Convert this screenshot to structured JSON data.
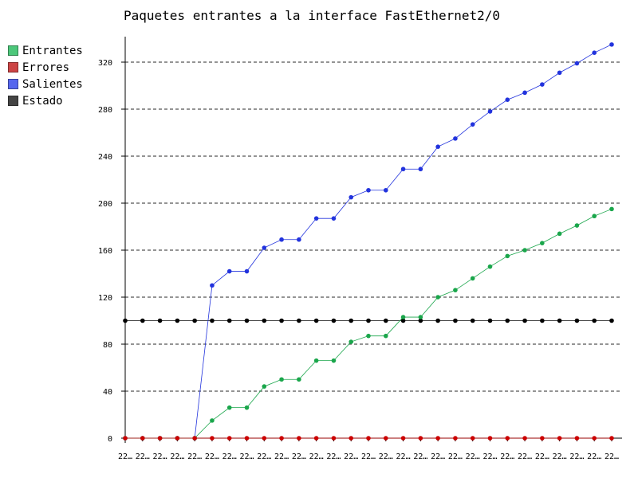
{
  "chart_data": {
    "type": "line",
    "title": "Paquetes entrantes a la interface FastEthernet2/0",
    "xlabel": "",
    "ylabel": "",
    "ylim": [
      0,
      340
    ],
    "yticks": [
      0,
      40,
      80,
      120,
      160,
      200,
      240,
      280,
      320
    ],
    "categories": [
      "22…",
      "22…",
      "22…",
      "22…",
      "22…",
      "22…",
      "22…",
      "22…",
      "22…",
      "22…",
      "22…",
      "22…",
      "22…",
      "22…",
      "22…",
      "22…",
      "22…",
      "22…",
      "22…",
      "22…",
      "22…",
      "22…",
      "22…",
      "22…",
      "22…",
      "22…",
      "22…",
      "22…",
      "22…"
    ],
    "grid": true,
    "grid_style": "dashed horizontal",
    "legend_position": "top-left",
    "series": [
      {
        "name": "Entrantes",
        "color": "#1aa64b",
        "swatch": "#4cc77a",
        "values": [
          0,
          0,
          0,
          0,
          0,
          15,
          26,
          26,
          44,
          50,
          50,
          66,
          66,
          82,
          87,
          87,
          103,
          103,
          120,
          126,
          136,
          146,
          155,
          160,
          166,
          174,
          181,
          189,
          195
        ]
      },
      {
        "name": "Errores",
        "color": "#cc0000",
        "swatch": "#cc4444",
        "values": [
          0,
          0,
          0,
          0,
          0,
          0,
          0,
          0,
          0,
          0,
          0,
          0,
          0,
          0,
          0,
          0,
          0,
          0,
          0,
          0,
          0,
          0,
          0,
          0,
          0,
          0,
          0,
          0,
          0
        ]
      },
      {
        "name": "Salientes",
        "color": "#2233dd",
        "swatch": "#5566ee",
        "values": [
          0,
          0,
          0,
          0,
          0,
          130,
          142,
          142,
          162,
          169,
          169,
          187,
          187,
          205,
          211,
          211,
          229,
          229,
          248,
          255,
          267,
          278,
          288,
          294,
          301,
          311,
          319,
          328,
          335
        ]
      },
      {
        "name": "Estado",
        "color": "#000000",
        "swatch": "#444444",
        "values": [
          100,
          100,
          100,
          100,
          100,
          100,
          100,
          100,
          100,
          100,
          100,
          100,
          100,
          100,
          100,
          100,
          100,
          100,
          100,
          100,
          100,
          100,
          100,
          100,
          100,
          100,
          100,
          100,
          100
        ]
      }
    ]
  }
}
